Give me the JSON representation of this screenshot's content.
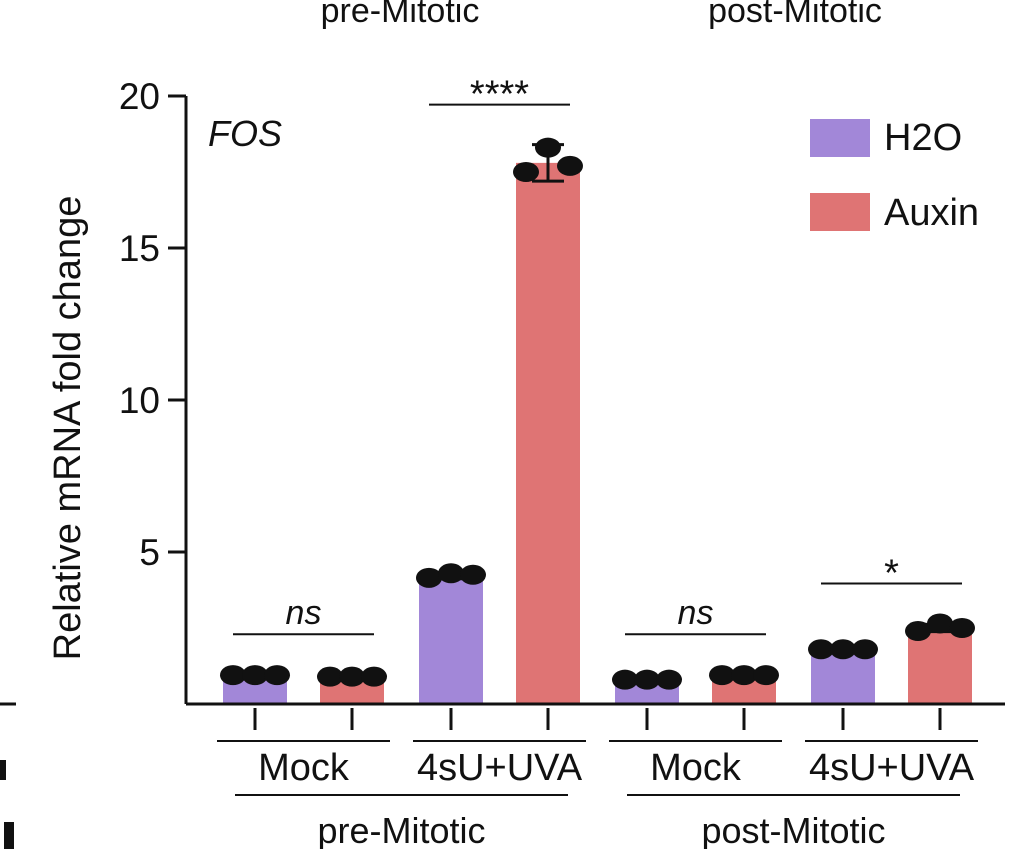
{
  "chart_data": {
    "type": "bar",
    "gene_label": "FOS",
    "ylabel": "Relative  mRNA fold change",
    "ylim": [
      0,
      20
    ],
    "yticks": [
      "5",
      "10",
      "15",
      "20"
    ],
    "ytick_values": [
      5,
      10,
      15,
      20
    ],
    "legend_position": "top-right",
    "grid": false,
    "top_labels": [
      "pre-Mitotic",
      "post-Mitotic"
    ],
    "series": [
      {
        "name": "H2O",
        "color": "#a287d8"
      },
      {
        "name": "Auxin",
        "color": "#df7474"
      }
    ],
    "groups": [
      {
        "condition": "Mock",
        "phase": "pre-Mitotic",
        "values": [
          0.95,
          0.9
        ],
        "errors": [
          0.03,
          0.03
        ],
        "points": [
          [
            0.95,
            0.95,
            0.95
          ],
          [
            0.9,
            0.9,
            0.9
          ]
        ],
        "significance": "ns"
      },
      {
        "condition": "4sU+UVA",
        "phase": "pre-Mitotic",
        "values": [
          4.2,
          17.8
        ],
        "errors": [
          0.08,
          0.6
        ],
        "points": [
          [
            4.15,
            4.3,
            4.25
          ],
          [
            17.5,
            18.3,
            17.7
          ]
        ],
        "significance": "****"
      },
      {
        "condition": "Mock",
        "phase": "post-Mitotic",
        "values": [
          0.8,
          0.95
        ],
        "errors": [
          0.02,
          0.03
        ],
        "points": [
          [
            0.8,
            0.8,
            0.8
          ],
          [
            0.95,
            0.95,
            0.95
          ]
        ],
        "significance": "ns"
      },
      {
        "condition": "4sU+UVA",
        "phase": "post-Mitotic",
        "values": [
          1.8,
          2.5
        ],
        "errors": [
          0.03,
          0.12
        ],
        "points": [
          [
            1.8,
            1.8,
            1.8
          ],
          [
            2.4,
            2.65,
            2.5
          ]
        ],
        "significance": "*"
      }
    ]
  }
}
